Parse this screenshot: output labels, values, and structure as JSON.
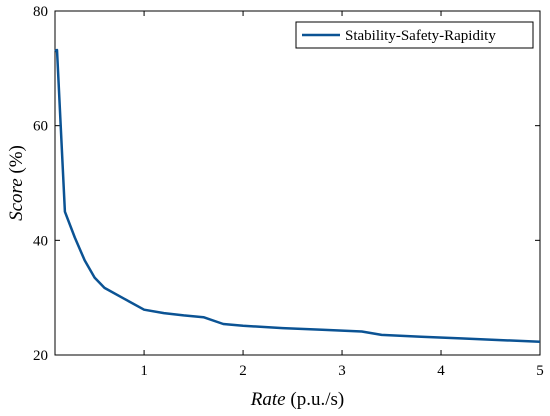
{
  "chart_data": {
    "type": "line",
    "xlabel_italic": "Rate",
    "xlabel_unit": " (p.u./s)",
    "ylabel_italic": "Score",
    "ylabel_unit": " (%)",
    "xlim": [
      0.1,
      5
    ],
    "ylim": [
      20,
      80
    ],
    "xticks": [
      1,
      2,
      3,
      4,
      5
    ],
    "yticks": [
      20,
      40,
      60,
      80
    ],
    "grid": false,
    "legend_position": "top-right",
    "series": [
      {
        "name": "Stability-Safety-Rapidity",
        "color": "#0b5394",
        "x": [
          0.1,
          0.12,
          0.2,
          0.3,
          0.4,
          0.5,
          0.6,
          0.8,
          1.0,
          1.2,
          1.4,
          1.6,
          1.8,
          2.0,
          2.4,
          2.8,
          3.2,
          3.4,
          3.8,
          4.2,
          4.6,
          5.0
        ],
        "y": [
          73,
          73.2,
          45,
          40.5,
          36.5,
          33.5,
          31.7,
          29.8,
          27.9,
          27.3,
          26.9,
          26.6,
          25.4,
          25.1,
          24.7,
          24.4,
          24.1,
          23.5,
          23.2,
          22.9,
          22.6,
          22.3
        ]
      }
    ]
  }
}
